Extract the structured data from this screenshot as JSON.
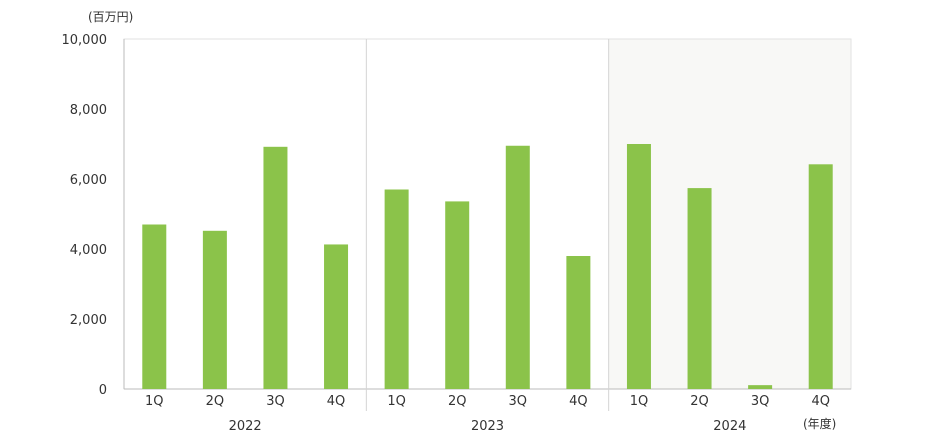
{
  "chart_data": {
    "type": "bar",
    "y_unit": "(百万円)",
    "x_unit": "(年度)",
    "ylim": [
      0,
      10000
    ],
    "y_ticks": [
      "0",
      "2,000",
      "4,000",
      "6,000",
      "8,000",
      "10,000"
    ],
    "y_tick_values": [
      0,
      2000,
      4000,
      6000,
      8000,
      10000
    ],
    "quarters": [
      "1Q",
      "2Q",
      "3Q",
      "4Q"
    ],
    "groups": [
      {
        "year": "2022",
        "values": [
          4700,
          4520,
          6920,
          4130
        ]
      },
      {
        "year": "2023",
        "values": [
          5700,
          5360,
          6950,
          3800
        ]
      },
      {
        "year": "2024",
        "values": [
          7000,
          5740,
          110,
          6420
        ],
        "shaded": true
      }
    ],
    "colors": {
      "bar": "#8bc34a",
      "shade": "#f8f8f6",
      "axis": "#bbbbbb",
      "divider": "#d4d4d4"
    },
    "grid": false
  }
}
